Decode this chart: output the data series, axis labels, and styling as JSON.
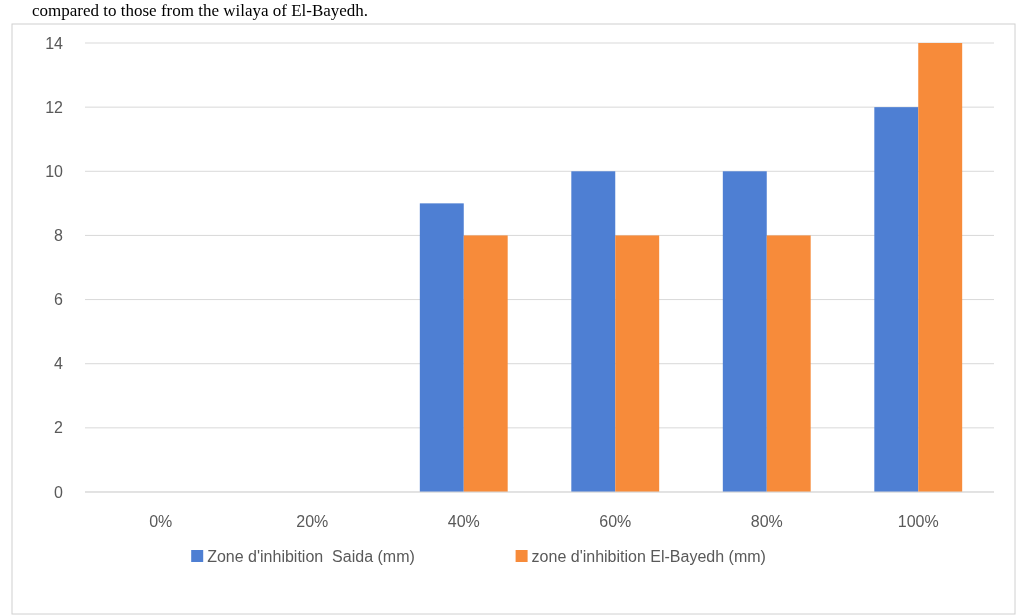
{
  "chart_data": {
    "type": "bar",
    "categories": [
      "0%",
      "20%",
      "40%",
      "60%",
      "80%",
      "100%"
    ],
    "series": [
      {
        "name": "Zone d'inhibition  Saida (mm)",
        "color": "#4e7fd3",
        "values": [
          0,
          0,
          9,
          10,
          10,
          12
        ]
      },
      {
        "name": "zone d'inhibition El-Bayedh (mm)",
        "color": "#f78b3a",
        "values": [
          0,
          0,
          8,
          8,
          8,
          14
        ]
      }
    ],
    "ylim": [
      0,
      14
    ],
    "yticks": [
      0,
      2,
      4,
      6,
      8,
      10,
      12,
      14
    ],
    "grid": "y",
    "legend": "bottom",
    "annotations": [
      "compared to those from the wilaya of El-Bayedh."
    ]
  }
}
